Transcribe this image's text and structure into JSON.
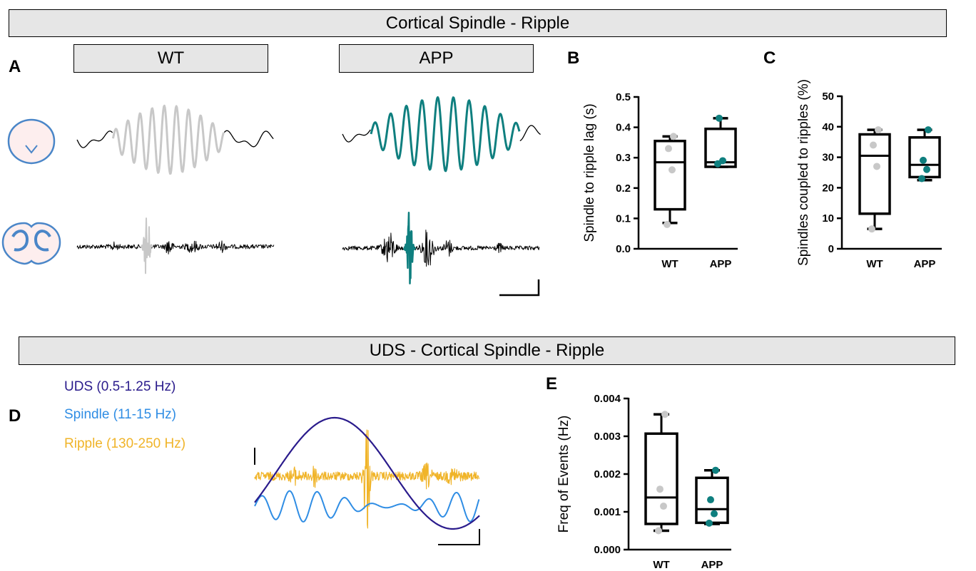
{
  "banners": {
    "top": "Cortical Spindle - Ripple",
    "bottom": "UDS - Cortical Spindle - Ripple"
  },
  "panels": {
    "a": "A",
    "b": "B",
    "c": "C",
    "d": "D",
    "e": "E"
  },
  "groups": {
    "wt": "WT",
    "app": "APP"
  },
  "colors": {
    "wt": "#c8c8c8",
    "app": "#0f7f7f",
    "uds": "#2a1b8c",
    "spindle": "#2f8de4",
    "ripple": "#f0b429",
    "brain": "#4a86c8"
  },
  "legend_d": {
    "uds": "UDS (0.5-1.25 Hz)",
    "spindle": "Spindle (11-15 Hz)",
    "ripple": "Ripple (130-250 Hz)"
  },
  "chart_data": [
    {
      "id": "B",
      "type": "box",
      "ylabel": "Spindle to ripple lag (s)",
      "ylim": [
        0,
        0.5
      ],
      "yticks": [
        "0.0",
        "0.1",
        "0.2",
        "0.3",
        "0.4",
        "0.5"
      ],
      "categories": [
        "WT",
        "APP"
      ],
      "boxes": [
        {
          "name": "WT",
          "min": 0.085,
          "q1": 0.13,
          "median": 0.285,
          "q3": 0.355,
          "max": 0.37,
          "points": [
            0.08,
            0.26,
            0.33,
            0.37
          ]
        },
        {
          "name": "APP",
          "min": 0.27,
          "q1": 0.27,
          "median": 0.285,
          "q3": 0.395,
          "max": 0.43,
          "points": [
            0.28,
            0.29,
            0.43
          ]
        }
      ]
    },
    {
      "id": "C",
      "type": "box",
      "ylabel": "Spindles coupled to ripples (%)",
      "ylim": [
        0,
        50
      ],
      "yticks": [
        "0",
        "10",
        "20",
        "30",
        "40",
        "50"
      ],
      "categories": [
        "WT",
        "APP"
      ],
      "boxes": [
        {
          "name": "WT",
          "min": 6.5,
          "q1": 11.5,
          "median": 30.5,
          "q3": 37.5,
          "max": 39,
          "points": [
            6.5,
            27,
            34,
            39
          ]
        },
        {
          "name": "APP",
          "min": 22.5,
          "q1": 23.5,
          "median": 27.5,
          "q3": 36.5,
          "max": 39,
          "points": [
            23,
            26,
            29,
            39
          ]
        }
      ]
    },
    {
      "id": "E",
      "type": "box",
      "ylabel": "Freq of Events (Hz)",
      "ylim": [
        0,
        0.004
      ],
      "yticks": [
        "0.000",
        "0.001",
        "0.002",
        "0.003",
        "0.004"
      ],
      "categories": [
        "WT",
        "APP"
      ],
      "boxes": [
        {
          "name": "WT",
          "min": 0.0005,
          "q1": 0.00068,
          "median": 0.00138,
          "q3": 0.00307,
          "max": 0.00358,
          "points": [
            0.0005,
            0.00115,
            0.0016,
            0.00358
          ]
        },
        {
          "name": "APP",
          "min": 0.00068,
          "q1": 0.00071,
          "median": 0.00107,
          "q3": 0.0019,
          "max": 0.0021,
          "points": [
            0.0007,
            0.00095,
            0.00132,
            0.0021
          ]
        }
      ]
    }
  ]
}
